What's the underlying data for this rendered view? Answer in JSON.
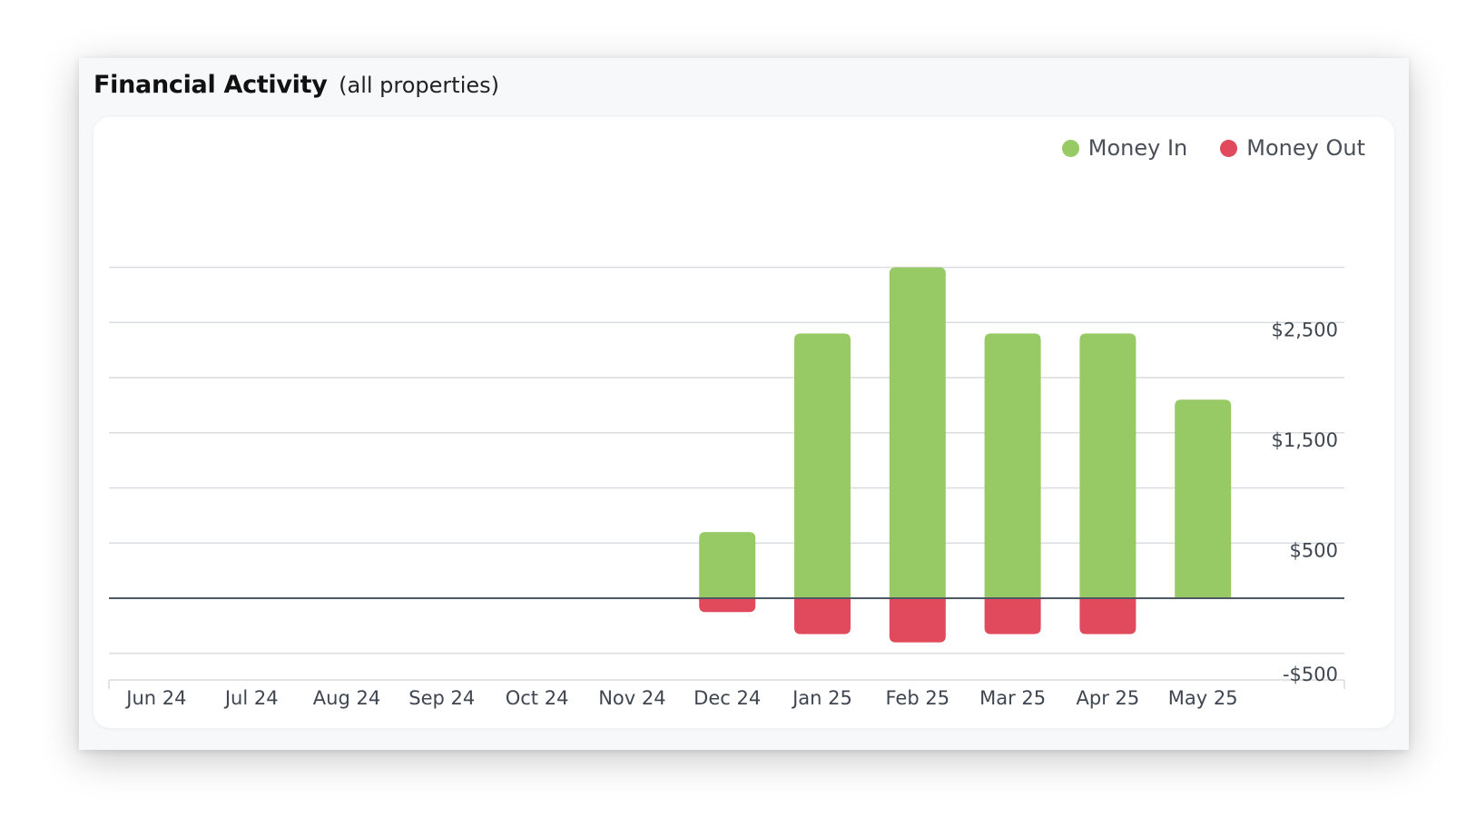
{
  "header": {
    "title": "Financial Activity",
    "subtitle": "(all properties)"
  },
  "legend": [
    {
      "label": "Money In",
      "color": "#97c964"
    },
    {
      "label": "Money Out",
      "color": "#e04a5c"
    }
  ],
  "chart_data": {
    "type": "bar",
    "stacked": true,
    "categories": [
      "Jun 24",
      "Jul 24",
      "Aug 24",
      "Sep 24",
      "Oct 24",
      "Nov 24",
      "Dec 24",
      "Jan 25",
      "Feb 25",
      "Mar 25",
      "Apr 25",
      "May 25"
    ],
    "series": [
      {
        "name": "Money In",
        "color": "#97c964",
        "values": [
          0,
          0,
          0,
          0,
          0,
          0,
          600,
          2400,
          3000,
          2400,
          2400,
          1800
        ]
      },
      {
        "name": "Money Out",
        "color": "#e04a5c",
        "values": [
          0,
          0,
          0,
          0,
          0,
          0,
          -125,
          -325,
          -400,
          -325,
          -325,
          0
        ]
      }
    ],
    "y_ticks": [
      {
        "value": 2500,
        "label": "$2,500"
      },
      {
        "value": 1500,
        "label": "$1,500"
      },
      {
        "value": 500,
        "label": "$500"
      },
      {
        "value": -500,
        "label": "-$500"
      }
    ],
    "ylim": [
      -750,
      3000
    ],
    "grid": true,
    "gridlines": [
      -500,
      500,
      1000,
      1500,
      2000,
      2500,
      3000
    ],
    "y_axis_side": "right",
    "legend_position": "top-right"
  }
}
